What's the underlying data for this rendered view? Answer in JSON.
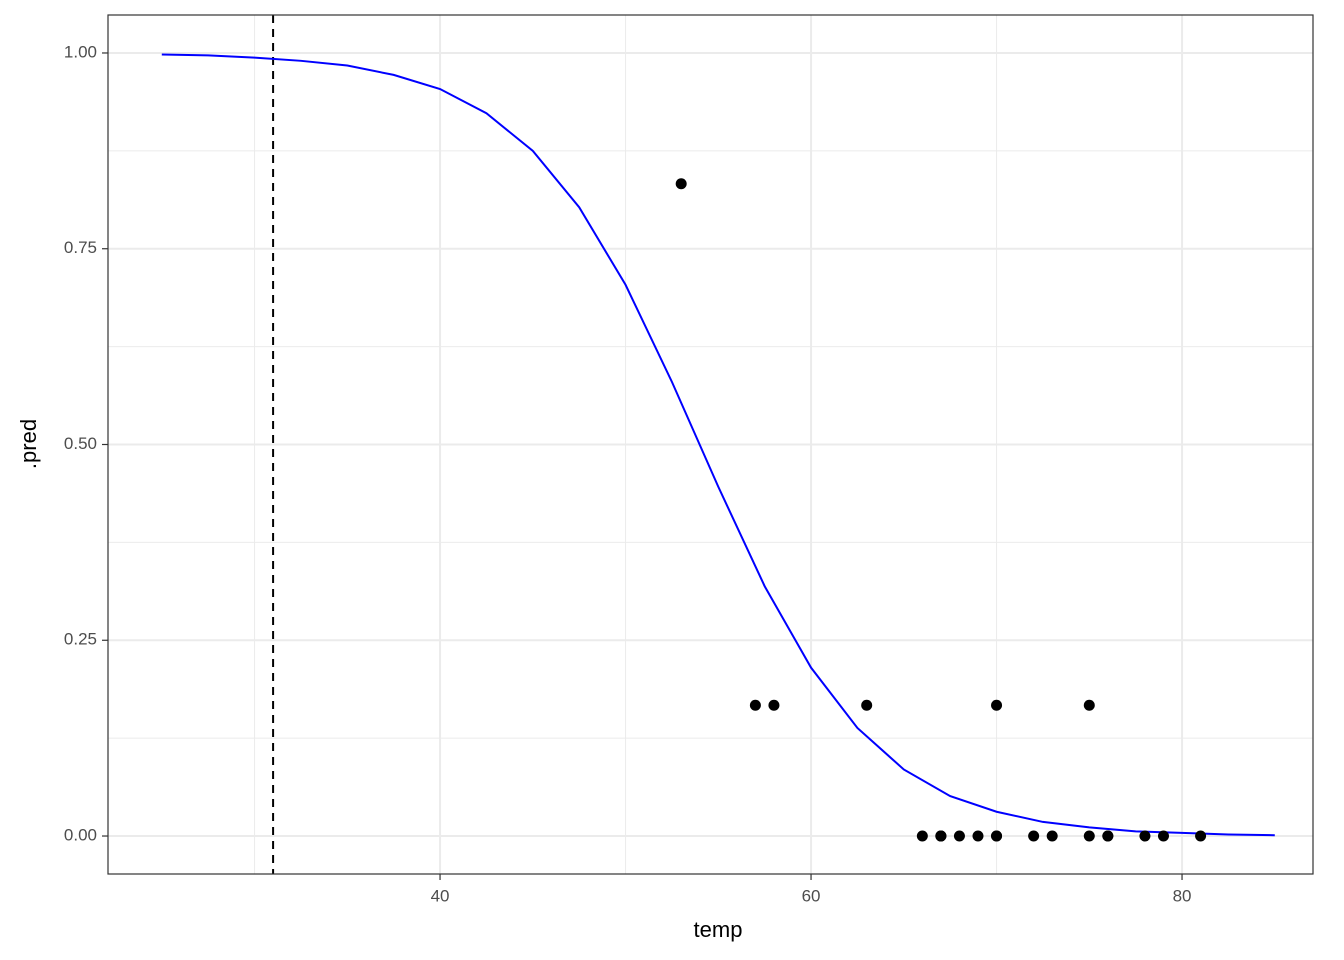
{
  "chart_data": {
    "type": "scatter",
    "x_label": "temp",
    "y_label": ".pred",
    "xlim": [
      22.1,
      87.06
    ],
    "ylim": [
      -0.0485,
      1.0485
    ],
    "xticks": [
      40,
      60,
      80
    ],
    "yticks": [
      {
        "value": 0,
        "label": "0.00"
      },
      {
        "value": 0.25,
        "label": "0.25"
      },
      {
        "value": 0.5,
        "label": "0.50"
      },
      {
        "value": 0.75,
        "label": "0.75"
      },
      {
        "value": 1,
        "label": "1.00"
      }
    ],
    "xminor": [
      30,
      50,
      70
    ],
    "yminor": [
      0.125,
      0.375,
      0.625,
      0.875
    ],
    "grid": true,
    "color": "#000000",
    "x": [
      53,
      57,
      58,
      63,
      70,
      75,
      66,
      67,
      67,
      67,
      68,
      69,
      70,
      70,
      72,
      73,
      75,
      76,
      76,
      78,
      79,
      81
    ],
    "values": [
      0.833,
      0.167,
      0.167,
      0.167,
      0.167,
      0.167,
      0,
      0,
      0,
      0,
      0,
      0,
      0,
      0,
      0,
      0,
      0,
      0,
      0,
      0,
      0,
      0
    ],
    "curve": {
      "type": "line",
      "color": "#0000ff",
      "x": [
        25,
        27.5,
        30,
        32.5,
        35,
        37.5,
        40,
        42.5,
        45,
        47.5,
        50,
        52.5,
        55,
        57.5,
        60,
        62.5,
        65,
        67.5,
        70,
        72.5,
        75,
        77.5,
        80,
        82.5,
        85
      ],
      "values": [
        0.998,
        0.997,
        0.994,
        0.99,
        0.984,
        0.972,
        0.954,
        0.923,
        0.875,
        0.803,
        0.704,
        0.58,
        0.446,
        0.319,
        0.215,
        0.138,
        0.085,
        0.051,
        0.031,
        0.018,
        0.011,
        0.006,
        0.004,
        0.002,
        0.001
      ]
    },
    "vline": {
      "x": 31,
      "color": "#000000",
      "style": "dashed"
    }
  }
}
